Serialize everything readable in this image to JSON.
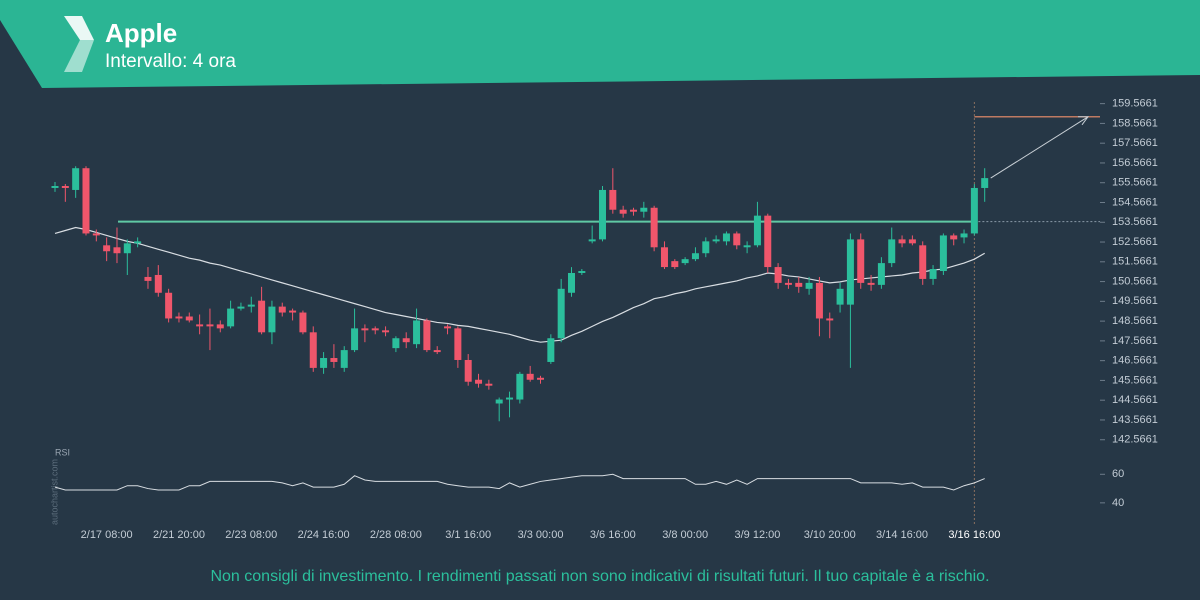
{
  "header": {
    "title": "Apple",
    "subtitle": "Intervallo: 4 ora"
  },
  "chart_data": {
    "type": "candlestick",
    "up_color": "#2bbf9c",
    "down_color": "#f0566b",
    "categories": [
      null,
      null,
      null,
      null,
      null,
      "2/17 08:00",
      null,
      null,
      null,
      null,
      null,
      null,
      "2/21 20:00",
      null,
      null,
      null,
      null,
      null,
      null,
      "2/23 08:00",
      null,
      null,
      null,
      null,
      null,
      null,
      "2/24 16:00",
      null,
      null,
      null,
      null,
      null,
      null,
      "2/28 08:00",
      null,
      null,
      null,
      null,
      null,
      null,
      "3/1 16:00",
      null,
      null,
      null,
      null,
      null,
      null,
      "3/3 00:00",
      null,
      null,
      null,
      null,
      null,
      null,
      "3/6 16:00",
      null,
      null,
      null,
      null,
      null,
      null,
      "3/8 00:00",
      null,
      null,
      null,
      null,
      null,
      null,
      "3/9 12:00",
      null,
      null,
      null,
      null,
      null,
      null,
      "3/10 20:00",
      null,
      null,
      null,
      null,
      null,
      null,
      "3/14 16:00",
      null,
      null,
      null,
      null,
      null,
      null,
      "3/16 16:00",
      null
    ],
    "open": [
      155.3,
      155.4,
      155.2,
      156.3,
      153.0,
      152.4,
      152.3,
      152.0,
      152.5,
      150.8,
      150.9,
      150.0,
      148.8,
      148.8,
      148.4,
      148.4,
      148.4,
      148.3,
      149.2,
      149.3,
      149.6,
      148.0,
      149.3,
      149.1,
      149.0,
      148.0,
      146.2,
      146.7,
      146.2,
      147.1,
      148.2,
      148.2,
      148.1,
      147.2,
      147.7,
      147.4,
      148.6,
      147.1,
      148.3,
      148.2,
      146.6,
      145.6,
      145.4,
      144.4,
      144.6,
      144.6,
      145.9,
      145.7,
      146.5,
      147.7,
      150.0,
      151.0,
      152.6,
      152.7,
      155.2,
      154.2,
      154.2,
      154.1,
      154.3,
      152.3,
      151.6,
      151.5,
      151.7,
      152.0,
      152.6,
      152.6,
      153.0,
      152.3,
      152.4,
      153.9,
      151.3,
      150.5,
      150.5,
      150.2,
      150.5,
      148.7,
      149.4,
      149.4,
      152.7,
      150.5,
      150.4,
      151.5,
      152.7,
      152.7,
      152.4,
      150.7,
      151.1,
      152.9,
      152.8,
      153.0,
      155.3
    ],
    "high": [
      155.6,
      155.5,
      156.4,
      156.4,
      153.2,
      152.8,
      153.3,
      152.7,
      152.8,
      151.3,
      151.4,
      150.2,
      149.0,
      149.0,
      148.9,
      149.2,
      148.6,
      149.6,
      149.5,
      149.8,
      150.3,
      149.6,
      149.5,
      149.2,
      149.1,
      148.3,
      147.0,
      147.4,
      147.3,
      149.2,
      148.4,
      148.3,
      148.3,
      147.8,
      148.0,
      149.2,
      148.7,
      147.3,
      148.4,
      148.3,
      146.9,
      145.9,
      145.6,
      144.7,
      145.0,
      146.0,
      146.3,
      145.8,
      147.9,
      150.7,
      151.3,
      151.2,
      153.4,
      155.4,
      156.3,
      154.4,
      154.3,
      154.6,
      154.4,
      152.6,
      151.7,
      151.8,
      152.3,
      152.8,
      152.9,
      153.1,
      153.1,
      152.6,
      154.6,
      154.0,
      151.5,
      150.7,
      150.8,
      150.8,
      150.8,
      149.0,
      150.5,
      153.0,
      153.0,
      150.9,
      151.8,
      153.3,
      152.9,
      152.9,
      152.6,
      151.4,
      153.0,
      153.0,
      153.2,
      155.5,
      156.3
    ],
    "low": [
      155.1,
      154.6,
      154.8,
      152.9,
      152.6,
      151.6,
      151.5,
      150.9,
      152.3,
      150.2,
      149.8,
      148.5,
      148.5,
      148.5,
      147.9,
      147.1,
      148.0,
      148.2,
      149.1,
      149.0,
      147.9,
      147.4,
      148.8,
      148.6,
      147.9,
      146.0,
      145.9,
      146.2,
      146.0,
      147.0,
      147.5,
      147.9,
      147.8,
      147.0,
      147.2,
      147.2,
      147.0,
      146.9,
      147.9,
      146.2,
      145.3,
      145.2,
      145.1,
      143.5,
      143.7,
      144.4,
      145.5,
      145.4,
      146.4,
      147.5,
      149.8,
      150.9,
      152.5,
      152.6,
      154.0,
      153.8,
      153.9,
      153.8,
      152.1,
      151.2,
      151.2,
      151.4,
      151.6,
      151.8,
      152.5,
      152.4,
      152.2,
      152.0,
      152.3,
      151.0,
      150.2,
      150.2,
      150.0,
      149.9,
      147.8,
      147.7,
      149.0,
      146.2,
      150.2,
      150.1,
      150.2,
      151.3,
      152.3,
      152.4,
      150.4,
      150.4,
      150.9,
      152.4,
      152.5,
      152.9,
      154.6
    ],
    "close": [
      155.4,
      155.3,
      156.3,
      153.0,
      152.9,
      152.1,
      152.0,
      152.5,
      152.6,
      150.6,
      150.0,
      148.7,
      148.7,
      148.6,
      148.3,
      148.3,
      148.2,
      149.2,
      149.3,
      149.4,
      148.0,
      149.3,
      149.0,
      149.0,
      148.0,
      146.2,
      146.7,
      146.5,
      147.1,
      148.2,
      148.1,
      148.1,
      148.0,
      147.7,
      147.5,
      148.6,
      147.1,
      147.0,
      148.2,
      146.6,
      145.5,
      145.4,
      145.3,
      144.6,
      144.7,
      145.9,
      145.6,
      145.6,
      147.7,
      150.2,
      151.0,
      151.1,
      152.7,
      155.2,
      154.2,
      154.0,
      154.1,
      154.3,
      152.3,
      151.3,
      151.3,
      151.7,
      152.0,
      152.6,
      152.7,
      153.0,
      152.4,
      152.4,
      153.9,
      151.3,
      150.5,
      150.4,
      150.3,
      150.5,
      148.7,
      148.6,
      150.2,
      152.7,
      150.5,
      150.4,
      151.5,
      152.7,
      152.5,
      152.5,
      150.7,
      151.2,
      152.9,
      152.7,
      153.0,
      155.3,
      155.8
    ],
    "moving_average": [
      153.0,
      153.15,
      153.3,
      153.2,
      153.05,
      152.9,
      152.75,
      152.6,
      152.5,
      152.35,
      152.2,
      152.05,
      151.9,
      151.75,
      151.65,
      151.5,
      151.4,
      151.25,
      151.1,
      150.95,
      150.8,
      150.65,
      150.5,
      150.35,
      150.2,
      150.05,
      149.9,
      149.75,
      149.6,
      149.45,
      149.3,
      149.15,
      149.0,
      148.9,
      148.8,
      148.7,
      148.6,
      148.5,
      148.45,
      148.35,
      148.3,
      148.2,
      148.1,
      148.0,
      147.9,
      147.75,
      147.6,
      147.5,
      147.55,
      147.6,
      147.85,
      148.05,
      148.3,
      148.55,
      148.75,
      149.0,
      149.25,
      149.45,
      149.7,
      149.8,
      149.95,
      150.05,
      150.2,
      150.3,
      150.4,
      150.5,
      150.6,
      150.75,
      150.85,
      151.0,
      150.95,
      150.85,
      150.8,
      150.7,
      150.6,
      150.5,
      150.55,
      150.65,
      150.7,
      150.75,
      150.8,
      150.85,
      150.9,
      151.0,
      151.05,
      151.15,
      151.2,
      151.35,
      151.5,
      151.7,
      152.0
    ],
    "resistance": 153.6,
    "target": 158.9,
    "ylim": [
      142.3,
      159.75
    ],
    "yticks": [
      142.5661,
      143.5661,
      144.5661,
      145.5661,
      146.5661,
      147.5661,
      148.5661,
      149.5661,
      150.5661,
      151.5661,
      152.5661,
      153.5661,
      154.5661,
      155.5661,
      156.5661,
      157.5661,
      158.5661,
      159.5661
    ],
    "rsi": {
      "label": "RSI",
      "ylim": [
        28,
        77
      ],
      "yticks": [
        40,
        60
      ],
      "values": [
        51,
        49,
        49,
        49,
        49,
        49,
        49,
        52,
        52,
        50,
        49,
        49,
        49,
        52,
        52,
        55,
        55,
        55,
        55,
        55,
        55,
        55,
        54,
        52,
        54,
        51,
        51,
        51,
        53,
        59,
        56,
        55,
        55,
        55,
        55,
        55,
        55,
        55,
        53,
        52,
        51,
        51,
        51,
        50,
        54,
        51,
        53,
        55,
        56,
        57,
        58,
        59,
        59,
        59,
        60,
        57,
        57,
        57,
        57,
        57,
        57,
        57,
        53,
        53,
        55,
        53,
        56,
        53,
        57,
        57,
        57,
        57,
        57,
        57,
        57,
        57,
        57,
        57,
        54,
        54,
        54,
        54,
        53,
        54,
        51,
        51,
        51,
        49,
        52,
        54,
        57
      ]
    },
    "watermark": "autochartist.com"
  },
  "footer": "Non consigli di investimento. I rendimenti passati non sono indicativi di risultati futuri. Il tuo capitale è a rischio."
}
